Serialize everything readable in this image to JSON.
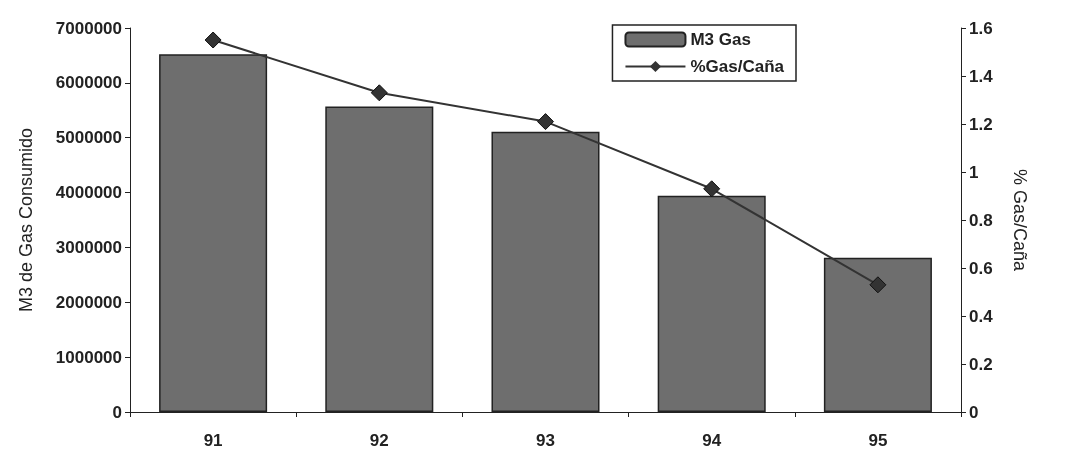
{
  "chart_data": {
    "type": "bar",
    "ylabel": "M3 de Gas Consumido",
    "y2label": "% Gas/Caña",
    "categories": [
      "91",
      "92",
      "93",
      "94",
      "95"
    ],
    "series": [
      {
        "name": "M3 Gas",
        "color": "#6e6e6e",
        "values": [
          6520000,
          5570000,
          5110000,
          3940000,
          2810000
        ]
      },
      {
        "name": "%Gas/Caña",
        "type": "line",
        "axis": "y2",
        "color": "#333333",
        "marker": "diamond",
        "values": [
          1.55,
          1.33,
          1.21,
          0.93,
          0.53
        ]
      }
    ],
    "ylim": [
      0,
      7000000
    ],
    "yticks": [
      0,
      1000000,
      2000000,
      3000000,
      4000000,
      5000000,
      6000000,
      7000000
    ],
    "y2lim": [
      0,
      1.6
    ],
    "y2ticks": [
      0,
      0.2,
      0.4,
      0.6,
      0.8,
      1,
      1.2,
      1.4,
      1.6
    ],
    "grid": false,
    "legend": "top right"
  }
}
